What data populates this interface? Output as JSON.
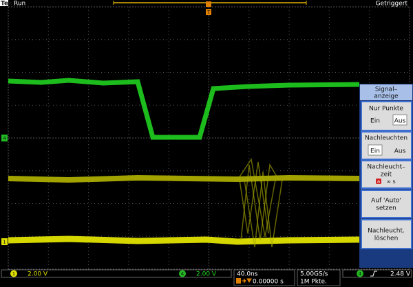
{
  "header": {
    "brand": "Tek",
    "state": "Run",
    "trigger_status": "Getriggert",
    "trigger_marker": "T"
  },
  "channel_markers": {
    "ch4": "4",
    "ch1": "1"
  },
  "side_menu": {
    "title_lines": [
      "Signal–",
      "anzeige"
    ],
    "items": [
      {
        "label": "Nur Punkte",
        "options": [
          "Ein",
          "Aus"
        ],
        "selected": 1
      },
      {
        "label": "Nachleuchten",
        "options": [
          "Ein",
          "Aus"
        ],
        "selected": 0
      },
      {
        "label_lines": [
          "Nachleucht–",
          "zeit"
        ],
        "badge": "a",
        "value": "∞ s"
      },
      {
        "label_lines": [
          "Auf 'Auto'",
          "setzen"
        ]
      },
      {
        "label_lines": [
          "Nachleucht.",
          "löschen"
        ]
      }
    ]
  },
  "status_bar": {
    "ch1": {
      "badge": "1",
      "scale": "2.00 V"
    },
    "ch4": {
      "badge": "4",
      "scale": "2.00 V"
    },
    "timebase": {
      "scale": "40.0ns",
      "position": "0.00000 s"
    },
    "acquisition": {
      "rate": "5.00GS/s",
      "record": "1M Pkte."
    },
    "trigger": {
      "source": "4",
      "level": "2.48 V"
    }
  }
}
